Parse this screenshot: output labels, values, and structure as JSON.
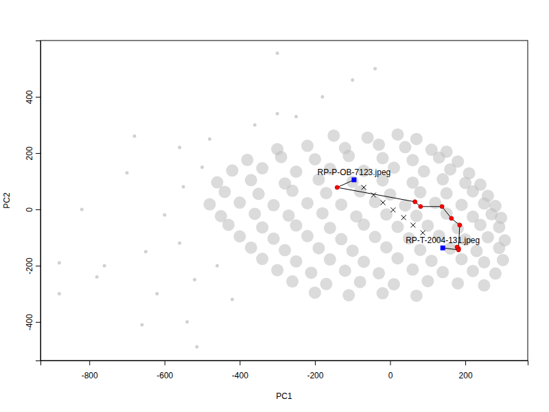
{
  "chart_data": {
    "type": "scatter",
    "xlabel": "PC1",
    "ylabel": "PC2",
    "xlim": [
      -930,
      366
    ],
    "ylim": [
      -537,
      600
    ],
    "xticks": [
      -800,
      -600,
      -400,
      -200,
      0,
      200
    ],
    "yticks": [
      -400,
      -200,
      0,
      200,
      400
    ],
    "series": [
      {
        "type": "scatter",
        "color": "#bebebe",
        "marker": "disc",
        "x": [
          -150,
          -60,
          20,
          70,
          -300,
          -220,
          -120,
          -30,
          40,
          110,
          150,
          -380,
          -290,
          -200,
          -110,
          -20,
          60,
          130,
          180,
          -420,
          -340,
          -250,
          -160,
          -70,
          10,
          90,
          160,
          210,
          -460,
          -370,
          -280,
          -190,
          -100,
          -20,
          60,
          140,
          200,
          240,
          -440,
          -350,
          -260,
          -170,
          -80,
          0,
          80,
          150,
          220,
          260,
          -480,
          -400,
          -310,
          -220,
          -130,
          -40,
          40,
          120,
          190,
          250,
          280,
          -450,
          -360,
          -270,
          -180,
          -90,
          -10,
          70,
          150,
          220,
          270,
          295,
          -430,
          -340,
          -250,
          -160,
          -70,
          20,
          100,
          180,
          240,
          290,
          -400,
          -310,
          -220,
          -130,
          -40,
          50,
          130,
          200,
          260,
          305,
          -370,
          -280,
          -190,
          -100,
          -10,
          80,
          160,
          230,
          290,
          -340,
          -250,
          -160,
          -70,
          20,
          110,
          190,
          250,
          300,
          -300,
          -210,
          -120,
          -30,
          60,
          140,
          220,
          280,
          -260,
          -170,
          -80,
          10,
          100,
          180,
          250,
          -200,
          -110,
          -20,
          70
        ],
        "y": [
          262,
          255,
          266,
          250,
          214,
          226,
          218,
          230,
          221,
          212,
          205,
          176,
          186,
          178,
          190,
          182,
          175,
          184,
          170,
          138,
          146,
          134,
          144,
          137,
          148,
          135,
          142,
          128,
          96,
          104,
          92,
          106,
          98,
          103,
          95,
          107,
          94,
          88,
          62,
          55,
          66,
          58,
          64,
          53,
          61,
          57,
          64,
          48,
          18,
          24,
          15,
          22,
          17,
          26,
          14,
          23,
          16,
          21,
          12,
          -24,
          -16,
          -22,
          -14,
          -25,
          -18,
          -23,
          -15,
          -26,
          -17,
          -30,
          -55,
          -64,
          -57,
          -66,
          -54,
          -62,
          -58,
          -67,
          -55,
          -63,
          -96,
          -104,
          -95,
          -106,
          -98,
          -103,
          -94,
          -107,
          -99,
          -110,
          -136,
          -145,
          -138,
          -147,
          -135,
          -144,
          -139,
          -148,
          -137,
          -176,
          -185,
          -178,
          -186,
          -174,
          -183,
          -177,
          -188,
          -180,
          -216,
          -225,
          -218,
          -227,
          -214,
          -223,
          -219,
          -228,
          -256,
          -265,
          -258,
          -266,
          -255,
          -263,
          -270,
          -296,
          -305,
          -298,
          -307
        ]
      },
      {
        "type": "scatter",
        "color": "#bebebe",
        "marker": "circle",
        "x": [
          -550,
          -600,
          -650,
          -700,
          -520,
          -620,
          -760,
          -820,
          -880,
          -780,
          -560,
          -480,
          -660,
          -540,
          -300,
          -180,
          -100,
          -40,
          -300,
          -880,
          -514,
          -680,
          -500,
          -560,
          -460,
          -420,
          -360,
          -250
        ],
        "y": [
          80,
          -20,
          -150,
          130,
          -250,
          -300,
          -200,
          0,
          -190,
          -240,
          220,
          250,
          -410,
          -400,
          340,
          400,
          460,
          500,
          555,
          -300,
          -488,
          260,
          150,
          -120,
          -200,
          -320,
          300,
          330
        ]
      },
      {
        "type": "line",
        "color": "#000000",
        "line_style": "solid",
        "x": [
          -96,
          -141,
          66,
          81,
          138,
          163,
          185,
          182,
          178,
          182,
          140
        ],
        "y": [
          105,
          78,
          27,
          10,
          10,
          -32,
          -56,
          -139,
          -134,
          -144,
          -137
        ]
      },
      {
        "type": "scatter",
        "color": "#000000",
        "marker": "x",
        "x": [
          -70,
          -44,
          -19,
          8,
          36,
          61,
          87
        ],
        "y": [
          78,
          51,
          24,
          -2,
          -29,
          -56,
          -83
        ]
      },
      {
        "type": "scatter",
        "color": "#ff0000",
        "marker": "dot",
        "x": [
          -141,
          66,
          81,
          138,
          163,
          185,
          182,
          178,
          182
        ],
        "y": [
          78,
          27,
          10,
          10,
          -32,
          -56,
          -139,
          -134,
          -144
        ]
      },
      {
        "type": "scatter",
        "color": "#0000ff",
        "marker": "square",
        "x": [
          -96,
          140
        ],
        "y": [
          105,
          -137
        ],
        "labels": [
          "RP-P-OB-7123.jpeg",
          "RP-T-2004-131.jpeg"
        ]
      }
    ]
  }
}
